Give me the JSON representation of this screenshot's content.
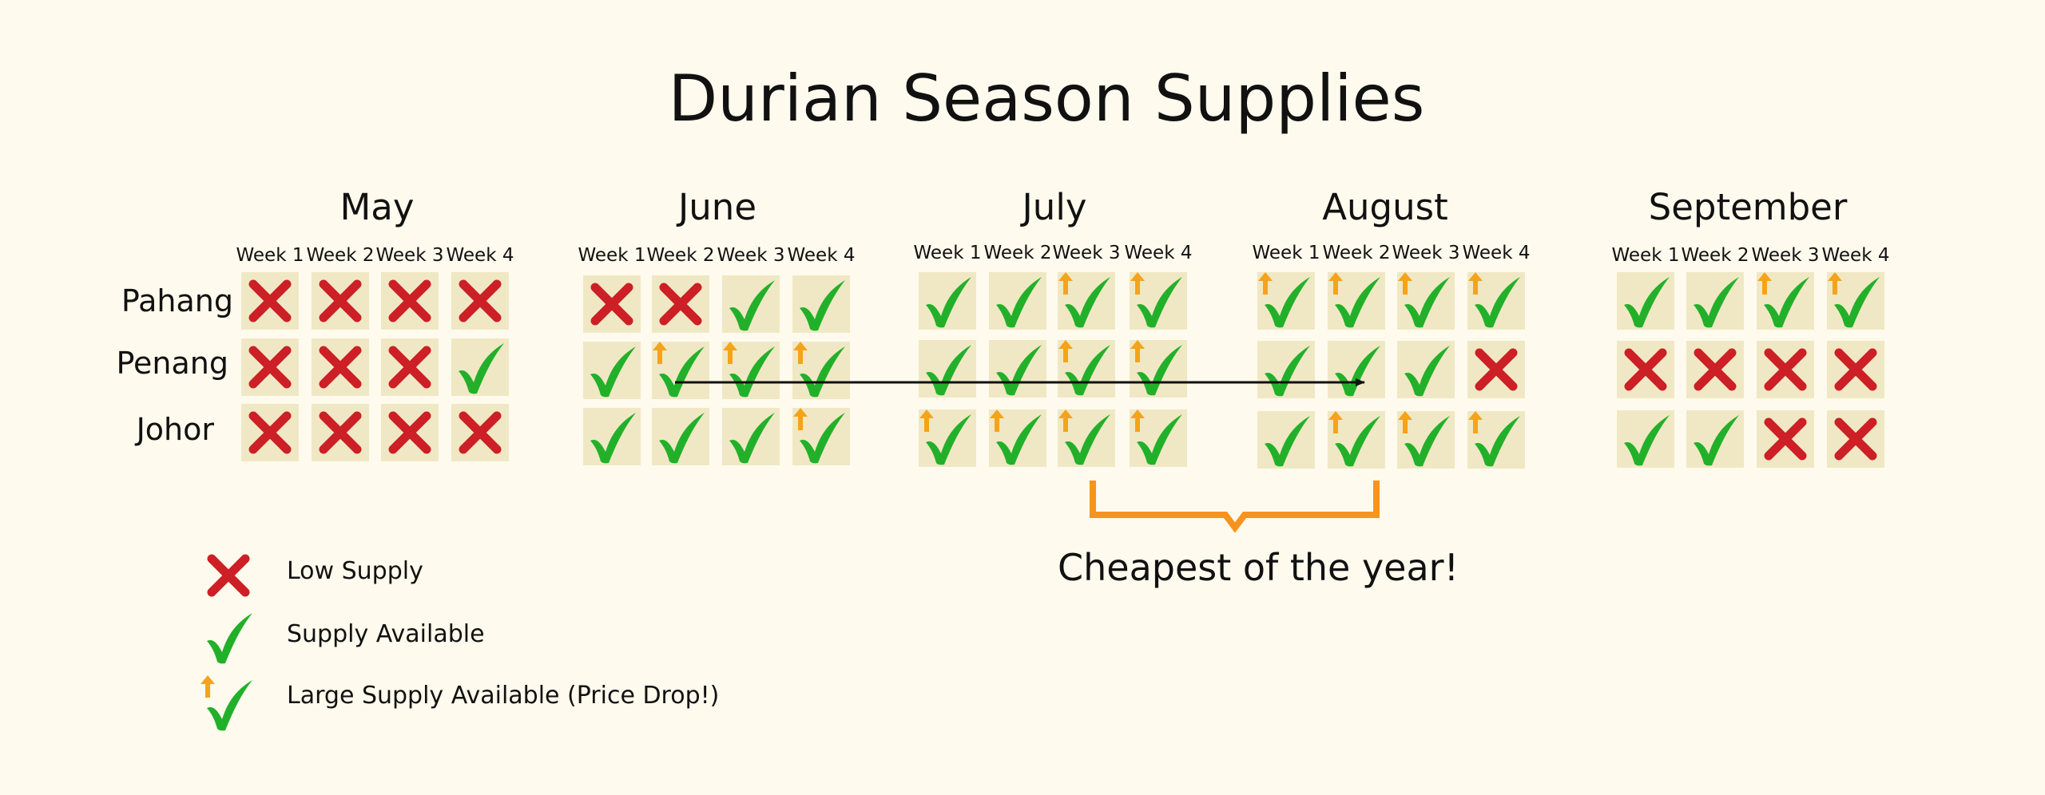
{
  "title": "Durian Season Supplies",
  "regions": [
    "Pahang",
    "Penang",
    "Johor"
  ],
  "week_labels": [
    "Week 1",
    "Week 2",
    "Week 3",
    "Week 4"
  ],
  "months": [
    {
      "name": "May",
      "status": [
        [
          "low",
          "low",
          "low",
          "low"
        ],
        [
          "low",
          "low",
          "low",
          "available"
        ],
        [
          "low",
          "low",
          "low",
          "low"
        ]
      ]
    },
    {
      "name": "June",
      "status": [
        [
          "low",
          "low",
          "available",
          "available"
        ],
        [
          "available",
          "large",
          "large",
          "large"
        ],
        [
          "available",
          "available",
          "available",
          "large"
        ]
      ]
    },
    {
      "name": "July",
      "status": [
        [
          "available",
          "available",
          "large",
          "large"
        ],
        [
          "available",
          "available",
          "large",
          "large"
        ],
        [
          "large",
          "large",
          "large",
          "large"
        ]
      ]
    },
    {
      "name": "August",
      "status": [
        [
          "large",
          "large",
          "large",
          "large"
        ],
        [
          "available",
          "available",
          "available",
          "low"
        ],
        [
          "available",
          "large",
          "large",
          "large"
        ]
      ]
    },
    {
      "name": "September",
      "status": [
        [
          "available",
          "available",
          "large",
          "large"
        ],
        [
          "low",
          "low",
          "low",
          "low"
        ],
        [
          "available",
          "available",
          "low",
          "low"
        ]
      ]
    }
  ],
  "legend": [
    {
      "symbol": "low",
      "label": "Low Supply"
    },
    {
      "symbol": "available",
      "label": "Supply Available"
    },
    {
      "symbol": "large",
      "label": "Large Supply Available (Price Drop!)"
    }
  ],
  "callout": "Cheapest of the year!",
  "colors": {
    "background": "#fefaed",
    "cell": "#f0e8c4",
    "low": "#cc1f26",
    "available": "#22b02a",
    "large_arrow": "#f5a31a",
    "bracket": "#f7931e",
    "text": "#111111"
  }
}
